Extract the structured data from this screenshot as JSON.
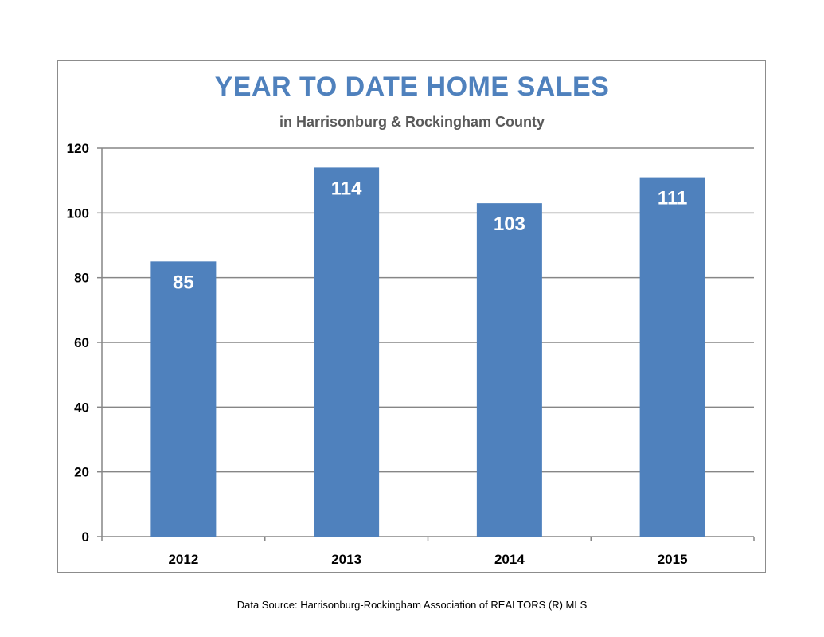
{
  "colors": {
    "bar": "#4f81bd",
    "title": "#4f81bd",
    "subtitle": "#595959",
    "grid": "#868686",
    "data_label": "#ffffff",
    "tick_label": "#000000"
  },
  "footer": {
    "source": "Data Source: Harrisonburg-Rockingham Association of REALTORS (R) MLS"
  },
  "chart_data": {
    "type": "bar",
    "title": "YEAR TO DATE HOME SALES",
    "subtitle": "in Harrisonburg & Rockingham County",
    "categories": [
      "2012",
      "2013",
      "2014",
      "2015"
    ],
    "values": [
      85,
      114,
      103,
      111
    ],
    "data_labels": [
      "85",
      "114",
      "103",
      "111"
    ],
    "y_ticks": [
      0,
      20,
      40,
      60,
      80,
      100,
      120
    ],
    "y_tick_labels": [
      "0",
      "20",
      "40",
      "60",
      "80",
      "100",
      "120"
    ],
    "ylim": [
      0,
      120
    ],
    "xlabel": "",
    "ylabel": "",
    "grid": true,
    "legend": "none"
  }
}
